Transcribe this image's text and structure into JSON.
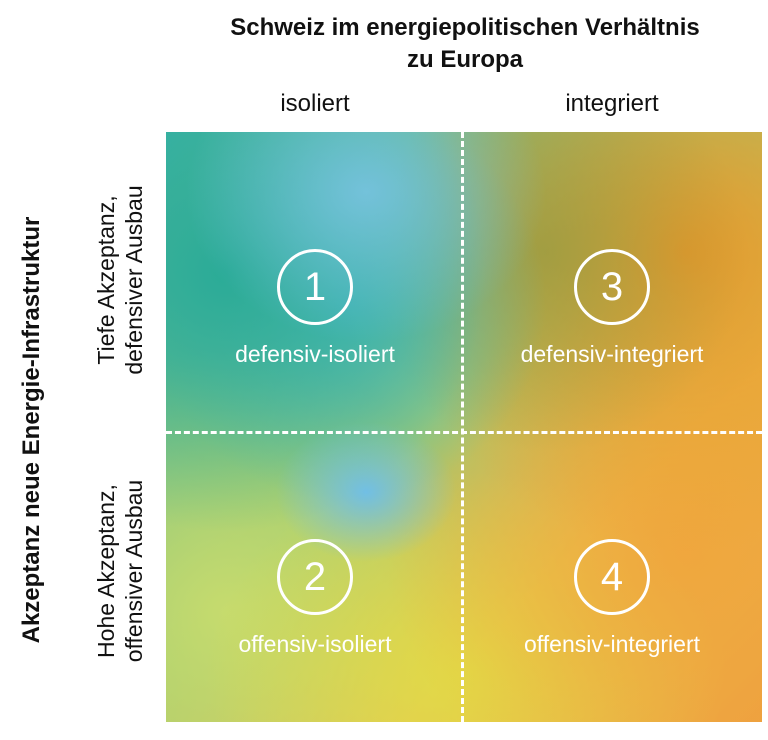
{
  "title": {
    "line1": "Schweiz im energiepolitischen Verhältnis",
    "line2": "zu Europa"
  },
  "columns": [
    "isoliert",
    "integriert"
  ],
  "y_axis_title": "Akzeptanz neue Energie-Infrastruktur",
  "rows": [
    {
      "line1": "Tiefe Akzeptanz,",
      "line2": "defensiver Ausbau"
    },
    {
      "line1": "Hohe Akzeptanz,",
      "line2": "offensiver Ausbau"
    }
  ],
  "quadrants": [
    {
      "number": "1",
      "label": "defensiv-isoliert"
    },
    {
      "number": "2",
      "label": "offensiv-isoliert"
    },
    {
      "number": "3",
      "label": "defensiv-integriert"
    },
    {
      "number": "4",
      "label": "offensiv-integriert"
    }
  ]
}
